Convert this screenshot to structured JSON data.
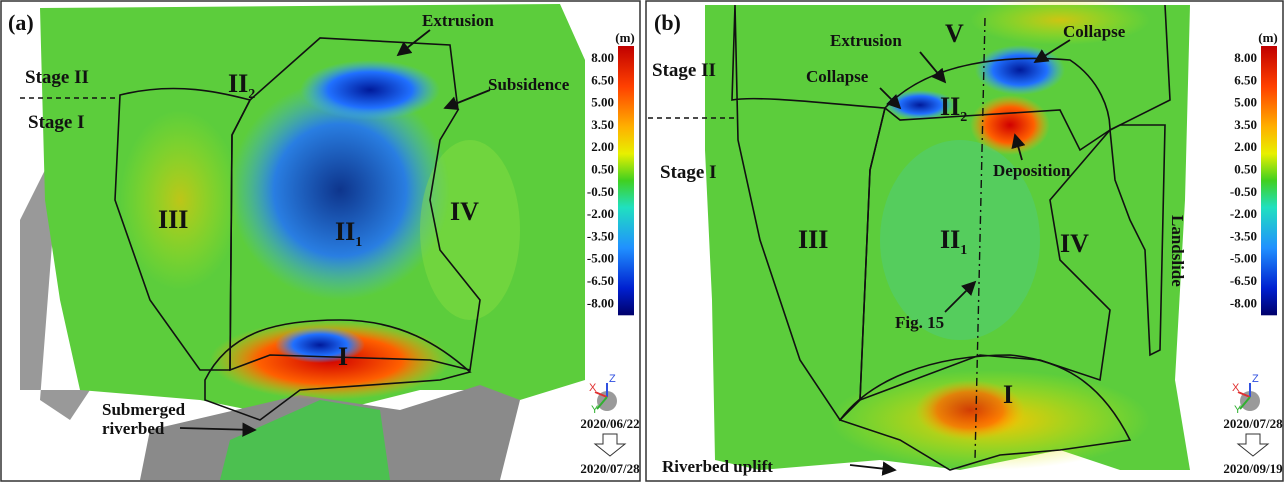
{
  "panels": [
    {
      "label": "(a)",
      "colorbar_unit": "(m)",
      "colorbar_ticks": [
        "8.00",
        "6.50",
        "5.00",
        "3.50",
        "2.00",
        "0.50",
        "-0.50",
        "-2.00",
        "-3.50",
        "-5.00",
        "-6.50",
        "-8.00"
      ],
      "axes": [
        "X",
        "Y",
        "Z"
      ],
      "stages": [
        "Stage II",
        "Stage I"
      ],
      "zones": [
        {
          "main": "II",
          "sub": "2"
        },
        {
          "main": "III"
        },
        {
          "main": "II",
          "sub": "1"
        },
        {
          "main": "IV"
        },
        {
          "main": "I"
        }
      ],
      "annotations": [
        "Extrusion",
        "Subsidence",
        "Submerged",
        "riverbed"
      ],
      "date_from": "2020/06/22",
      "date_to": "2020/07/28"
    },
    {
      "label": "(b)",
      "colorbar_unit": "(m)",
      "colorbar_ticks": [
        "8.00",
        "6.50",
        "5.00",
        "3.50",
        "2.00",
        "0.50",
        "-0.50",
        "-2.00",
        "-3.50",
        "-5.00",
        "-6.50",
        "-8.00"
      ],
      "axes": [
        "X",
        "Y",
        "Z"
      ],
      "stages": [
        "Stage II",
        "Stage I"
      ],
      "zones": [
        {
          "main": "V"
        },
        {
          "main": "II",
          "sub": "2"
        },
        {
          "main": "III"
        },
        {
          "main": "II",
          "sub": "1"
        },
        {
          "main": "IV"
        },
        {
          "main": "I"
        }
      ],
      "annotations": [
        "Extrusion",
        "Collapse",
        "Collapse",
        "Deposition",
        "Landslide",
        "Fig. 15",
        "Riverbed uplift"
      ],
      "date_from": "2020/07/28",
      "date_to": "2020/09/19"
    }
  ]
}
